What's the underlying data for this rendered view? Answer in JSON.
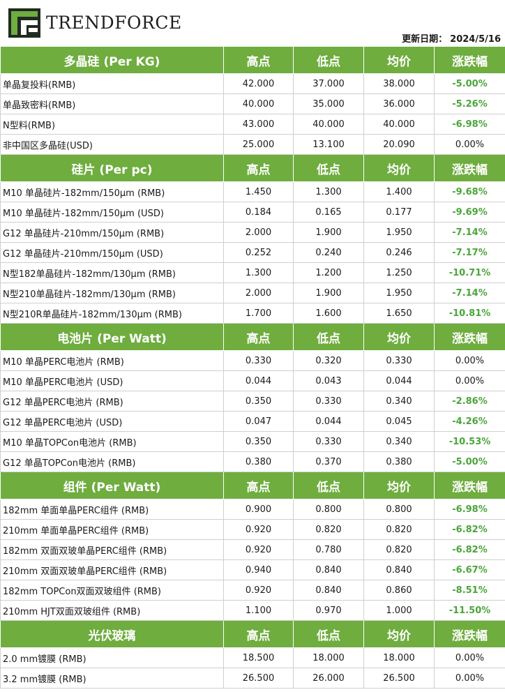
{
  "brand": {
    "name": "TRENDFORCE",
    "accent": "#6fad3f"
  },
  "update": {
    "label": "更新日期：",
    "date": "2024/5/16"
  },
  "sections": [
    {
      "title": "多晶硅 (Per KG)",
      "headers": [
        "高点",
        "低点",
        "均价",
        "涨跌幅"
      ],
      "rows": [
        {
          "name": "单晶复投料(RMB)",
          "high": "42.000",
          "low": "37.000",
          "avg": "38.000",
          "change": "-5.00%"
        },
        {
          "name": "单晶致密料(RMB)",
          "high": "40.000",
          "low": "35.000",
          "avg": "36.000",
          "change": "-5.26%"
        },
        {
          "name": "N型料(RMB)",
          "high": "43.000",
          "low": "40.000",
          "avg": "40.000",
          "change": "-6.98%"
        },
        {
          "name": "非中国区多晶硅(USD)",
          "high": "25.000",
          "low": "13.100",
          "avg": "20.090",
          "change": "0.00%"
        }
      ]
    },
    {
      "title": "硅片 (Per pc)",
      "headers": [
        "高点",
        "低点",
        "均价",
        "涨跌幅"
      ],
      "rows": [
        {
          "name": "M10 单晶硅片-182mm/150μm (RMB)",
          "high": "1.450",
          "low": "1.300",
          "avg": "1.400",
          "change": "-9.68%"
        },
        {
          "name": "M10 单晶硅片-182mm/150μm (USD)",
          "high": "0.184",
          "low": "0.165",
          "avg": "0.177",
          "change": "-9.69%"
        },
        {
          "name": "G12 单晶硅片-210mm/150μm  (RMB)",
          "high": "2.000",
          "low": "1.900",
          "avg": "1.950",
          "change": "-7.14%"
        },
        {
          "name": "G12 单晶硅片-210mm/150μm  (USD)",
          "high": "0.252",
          "low": "0.240",
          "avg": "0.246",
          "change": "-7.17%"
        },
        {
          "name": "N型182单晶硅片-182mm/130μm (RMB)",
          "high": "1.300",
          "low": "1.200",
          "avg": "1.250",
          "change": "-10.71%"
        },
        {
          "name": "N型210单晶硅片-182mm/130μm (RMB)",
          "high": "2.000",
          "low": "1.900",
          "avg": "1.950",
          "change": "-7.14%"
        },
        {
          "name": "N型210R单晶硅片-182mm/130μm (RMB)",
          "high": "1.700",
          "low": "1.600",
          "avg": "1.650",
          "change": "-10.81%"
        }
      ]
    },
    {
      "title": "电池片 (Per Watt)",
      "headers": [
        "高点",
        "低点",
        "均价",
        "涨跌幅"
      ],
      "rows": [
        {
          "name": "M10 单晶PERC电池片 (RMB)",
          "high": "0.330",
          "low": "0.320",
          "avg": "0.330",
          "change": "0.00%"
        },
        {
          "name": "M10 单晶PERC电池片 (USD)",
          "high": "0.044",
          "low": "0.043",
          "avg": "0.044",
          "change": "0.00%"
        },
        {
          "name": "G12 单晶PERC电池片 (RMB)",
          "high": "0.350",
          "low": "0.330",
          "avg": "0.340",
          "change": "-2.86%"
        },
        {
          "name": "G12 单晶PERC电池片 (USD)",
          "high": "0.047",
          "low": "0.044",
          "avg": "0.045",
          "change": "-4.26%"
        },
        {
          "name": "M10 单晶TOPCon电池片 (RMB)",
          "high": "0.350",
          "low": "0.330",
          "avg": "0.340",
          "change": "-10.53%"
        },
        {
          "name": "G12 单晶TOPCon电池片 (RMB)",
          "high": "0.380",
          "low": "0.370",
          "avg": "0.380",
          "change": "-5.00%"
        }
      ]
    },
    {
      "title": "组件 (Per Watt)",
      "headers": [
        "高点",
        "低点",
        "均价",
        "涨跌幅"
      ],
      "rows": [
        {
          "name": "182mm 单面单晶PERC组件 (RMB)",
          "high": "0.900",
          "low": "0.800",
          "avg": "0.800",
          "change": "-6.98%"
        },
        {
          "name": "210mm 单面单晶PERC组件 (RMB)",
          "high": "0.920",
          "low": "0.820",
          "avg": "0.820",
          "change": "-6.82%"
        },
        {
          "name": "182mm 双面双玻单晶PERC组件 (RMB)",
          "high": "0.920",
          "low": "0.780",
          "avg": "0.820",
          "change": "-6.82%"
        },
        {
          "name": "210mm 双面双玻单晶PERC组件 (RMB)",
          "high": "0.940",
          "low": "0.840",
          "avg": "0.840",
          "change": "-6.67%"
        },
        {
          "name": "182mm TOPCon双面双玻组件 (RMB)",
          "high": "0.920",
          "low": "0.840",
          "avg": "0.860",
          "change": "-8.51%"
        },
        {
          "name": "210mm HJT双面双玻组件 (RMB)",
          "high": "1.100",
          "low": "0.970",
          "avg": "1.000",
          "change": "-11.50%"
        }
      ]
    },
    {
      "title": "光伏玻璃",
      "headers": [
        "高点",
        "低点",
        "均价",
        "涨跌幅"
      ],
      "rows": [
        {
          "name": "2.0 mm镀膜 (RMB)",
          "high": "18.500",
          "low": "18.000",
          "avg": "18.000",
          "change": "0.00%"
        },
        {
          "name": "3.2 mm镀膜 (RMB)",
          "high": "26.500",
          "low": "26.000",
          "avg": "26.500",
          "change": "0.00%"
        }
      ]
    }
  ]
}
